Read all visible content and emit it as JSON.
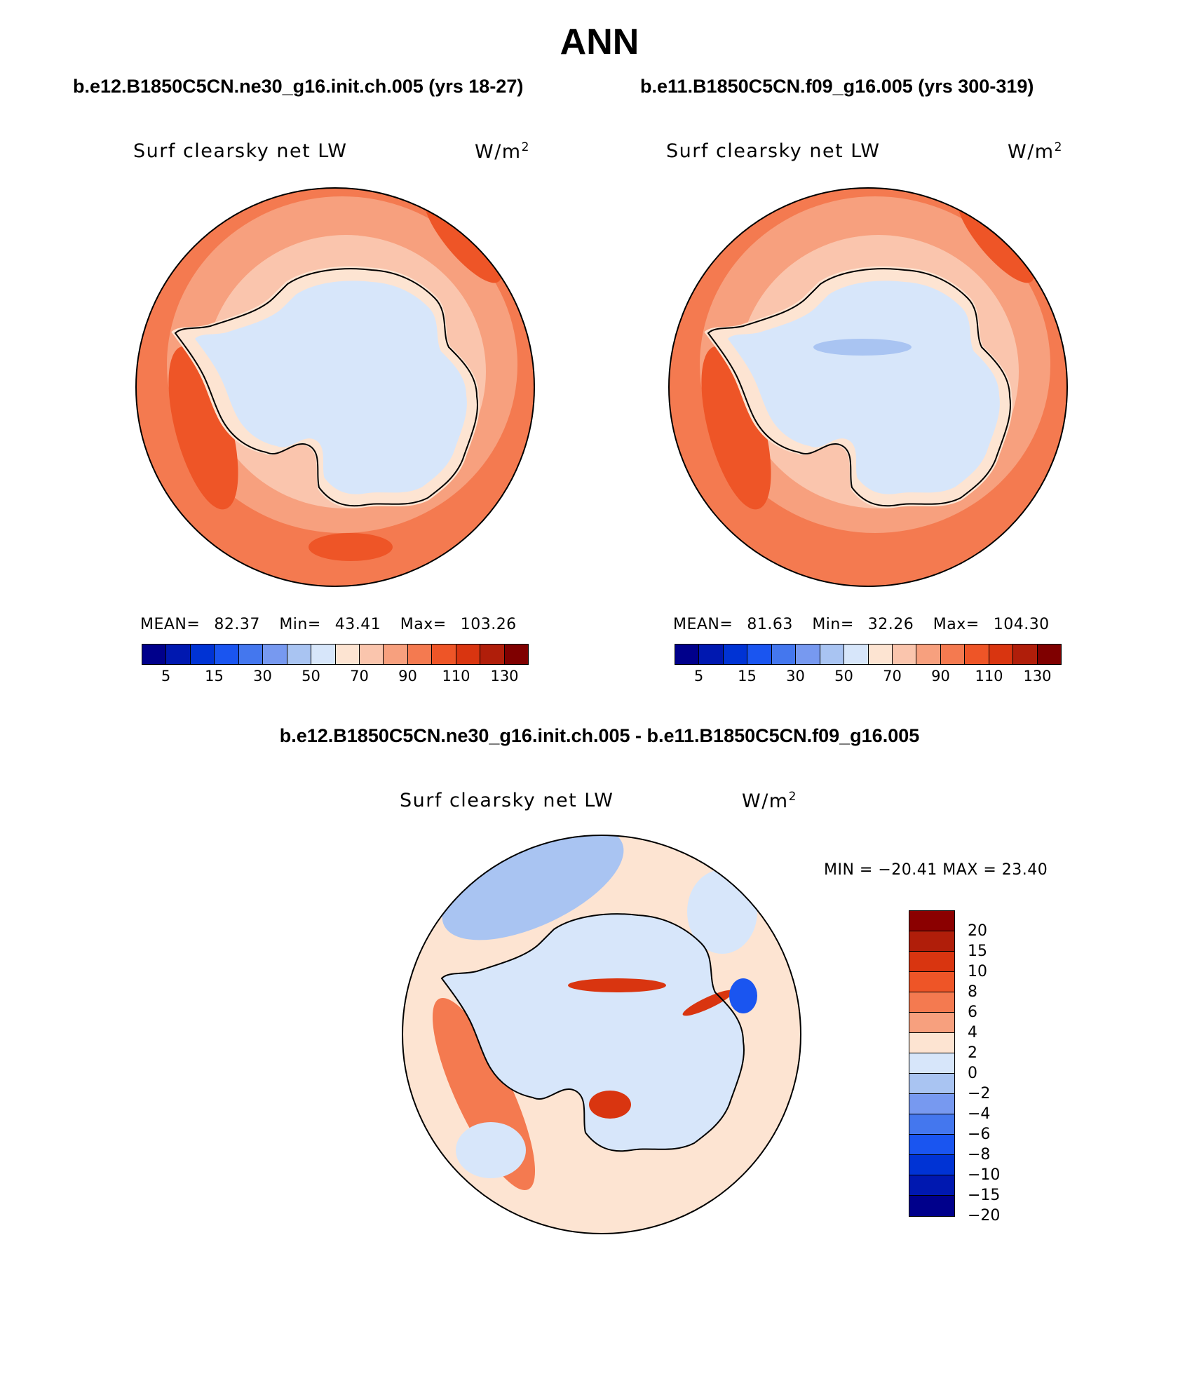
{
  "title": "ANN",
  "panels": [
    {
      "case": "b.e12.B1850C5CN.ne30_g16.init.ch.005 (yrs 18-27)",
      "variable": "Surf clearsky net LW",
      "units": "W/m",
      "units_sup": "2",
      "stats": {
        "mean_label": "MEAN=",
        "mean": "82.37",
        "min_label": "Min=",
        "min": "43.41",
        "max_label": "Max=",
        "max": "103.26"
      }
    },
    {
      "case": "b.e11.B1850C5CN.f09_g16.005 (yrs 300-319)",
      "variable": "Surf clearsky net LW",
      "units": "W/m",
      "units_sup": "2",
      "stats": {
        "mean_label": "MEAN=",
        "mean": "81.63",
        "min_label": "Min=",
        "min": "32.26",
        "max_label": "Max=",
        "max": "104.30"
      }
    }
  ],
  "colorbar": {
    "colors": [
      "#00008b",
      "#0018b0",
      "#0033d4",
      "#1a55f0",
      "#4477ee",
      "#7799f0",
      "#a9c4f2",
      "#d7e6fa",
      "#fde4d2",
      "#fac5ad",
      "#f7a07e",
      "#f47a50",
      "#ee5527",
      "#d93510",
      "#b01e0a",
      "#7f0000"
    ],
    "labels": [
      "5",
      "15",
      "30",
      "50",
      "70",
      "90",
      "110",
      "130"
    ]
  },
  "difference": {
    "title": "b.e12.B1850C5CN.ne30_g16.init.ch.005 - b.e11.B1850C5CN.f09_g16.005",
    "variable": "Surf clearsky net LW",
    "units": "W/m",
    "units_sup": "2",
    "minmax": "MIN = −20.41  MAX =   23.40",
    "colors": [
      "#8b0000",
      "#b01e0a",
      "#d93510",
      "#ee5527",
      "#f47a50",
      "#f7a07e",
      "#fde4d2",
      "#d7e6fa",
      "#a9c4f2",
      "#7799f0",
      "#4477ee",
      "#1a55f0",
      "#0033d4",
      "#0018b0",
      "#00008b"
    ],
    "labels": [
      "20",
      "15",
      "10",
      "8",
      "6",
      "4",
      "2",
      "0",
      "−2",
      "−4",
      "−6",
      "−8",
      "−10",
      "−15",
      "−20"
    ]
  },
  "map_colors": {
    "outer": "#f47a50",
    "band": "#f7a07e",
    "coastal": "#fac5ad",
    "ice": "#d7e6fa",
    "streak": "#ee5527",
    "diff_bg": "#fde4d2",
    "diff_blue": "#a9c4f2",
    "diff_lightblue": "#d7e6fa",
    "diff_red": "#f47a50",
    "diff_strongred": "#d93510",
    "diff_strongblue": "#1a55f0"
  }
}
